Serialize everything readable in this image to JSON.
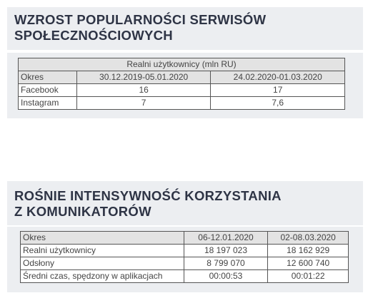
{
  "section1": {
    "title": [
      "WZROST POPULARNOŚCI SERWISÓW",
      "SPOŁECZNOŚCIOWYCH"
    ],
    "table": {
      "caption": "Realni użytkownicy (mln RU)",
      "rows": [
        [
          "Okres",
          "30.12.2019-05.01.2020",
          "24.02.2020-01.03.2020"
        ],
        [
          "Facebook",
          "16",
          "17"
        ],
        [
          "Instagram",
          "7",
          "7,6"
        ]
      ]
    }
  },
  "section2": {
    "title": [
      "ROŚNIE INTENSYWNOŚĆ KORZYSTANIA",
      "Z KOMUNIKATORÓW"
    ],
    "table": {
      "rows": [
        [
          "Okres",
          "06-12.01.2020",
          "02-08.03.2020"
        ],
        [
          "Realni użytkownicy",
          "18 197 023",
          "18 162 929"
        ],
        [
          "Odsłony",
          "8 799 070",
          "12 600 740"
        ],
        [
          "Średni czas, spędzony w aplikacjach",
          "00:00:53",
          "00:01:22"
        ]
      ]
    }
  }
}
